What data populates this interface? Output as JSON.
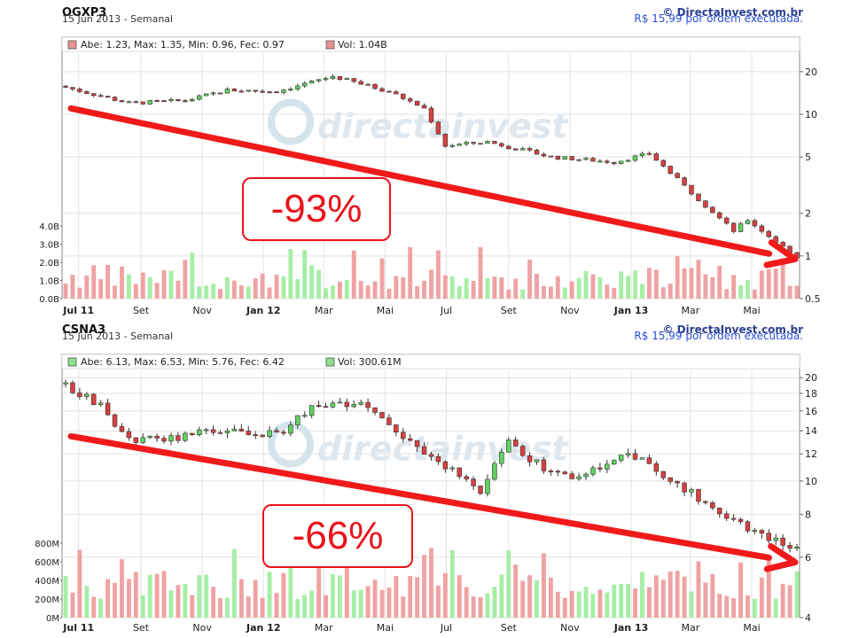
{
  "watermark": "directainvest",
  "charts": [
    {
      "symbol": "OGXP3",
      "date_line": "15 Jun 2013 - Semanal",
      "copyright": "© DirectaInvest.com.br",
      "price_note": "R$ 15,99 por ordem executada.",
      "legend_ohlc": "Abe: 1.23, Max: 1.35, Min: 0.96, Fec: 0.97",
      "legend_vol": "Vol: 1.04B",
      "legend_ohlc_color": "#e79595",
      "legend_vol_color": "#e79595",
      "price_scale": "log",
      "price_ticks": [
        "20",
        "10",
        "5",
        "2",
        "1",
        "0.5"
      ],
      "price_tick_values": [
        20,
        10,
        5,
        2,
        1,
        0.5
      ],
      "price_range": [
        0.5,
        27
      ],
      "volume_ticks": [
        "4.0B",
        "3.0B",
        "2.0B",
        "1.0B",
        "0.0B"
      ],
      "volume_tick_values": [
        4,
        3,
        2,
        1,
        0
      ],
      "x_labels": [
        "Jul 11",
        "Set",
        "Nov",
        "Jan 12",
        "Mar",
        "Mai",
        "Jul",
        "Set",
        "Nov",
        "Jan 13",
        "Mar",
        "Mai"
      ],
      "x_bold": [
        "Jul 11",
        "Jan 12",
        "Jan 13"
      ],
      "annotation": "-93%",
      "chart_data": {
        "type": "candlestick",
        "period": "weekly",
        "start": "2011-06-18",
        "end": "2013-06-15",
        "close_keypoints": [
          {
            "date": "2011-06-18",
            "value": 15.5
          },
          {
            "date": "2011-08-20",
            "value": 12.0
          },
          {
            "date": "2011-10-15",
            "value": 12.5
          },
          {
            "date": "2011-11-26",
            "value": 14.8
          },
          {
            "date": "2012-01-14",
            "value": 14.5
          },
          {
            "date": "2012-03-10",
            "value": 18.5
          },
          {
            "date": "2012-05-05",
            "value": 14.5
          },
          {
            "date": "2012-06-09",
            "value": 11.0
          },
          {
            "date": "2012-06-30",
            "value": 6.0
          },
          {
            "date": "2012-08-11",
            "value": 6.4
          },
          {
            "date": "2012-10-13",
            "value": 5.0
          },
          {
            "date": "2012-12-15",
            "value": 4.6
          },
          {
            "date": "2013-01-19",
            "value": 5.3
          },
          {
            "date": "2013-03-02",
            "value": 2.8
          },
          {
            "date": "2013-04-13",
            "value": 1.5
          },
          {
            "date": "2013-04-27",
            "value": 1.8
          },
          {
            "date": "2013-06-15",
            "value": 0.97
          }
        ],
        "volume_range_B": [
          0.5,
          3.0
        ],
        "trendline": {
          "from": {
            "date": "2011-06-18",
            "value": 11.0
          },
          "to": {
            "date": "2013-06-15",
            "value": 0.95
          }
        }
      }
    },
    {
      "symbol": "CSNA3",
      "date_line": "15 Jun 2013 - Semanal",
      "copyright": "© DirectaInvest.com.br",
      "price_note": "R$ 15,99 por ordem executada.",
      "legend_ohlc": "Abe: 6.13, Max: 6.53, Min: 5.76, Fec: 6.42",
      "legend_vol": "Vol: 300.61M",
      "legend_ohlc_color": "#8ee08e",
      "legend_vol_color": "#8ee08e",
      "price_scale": "log",
      "price_ticks": [
        "20",
        "18",
        "16",
        "14",
        "12",
        "10",
        "8",
        "6",
        "4"
      ],
      "price_tick_values": [
        20,
        18,
        16,
        14,
        12,
        10,
        8,
        6,
        4
      ],
      "price_range": [
        4,
        21
      ],
      "volume_ticks": [
        "800M",
        "600M",
        "400M",
        "200M",
        "0M"
      ],
      "volume_tick_values": [
        800,
        600,
        400,
        200,
        0
      ],
      "x_labels": [
        "Jul 11",
        "Set",
        "Nov",
        "Jan 12",
        "Mar",
        "Mai",
        "Jul",
        "Set",
        "Nov",
        "Jan 13",
        "Mar",
        "Mai"
      ],
      "x_bold": [
        "Jul 11",
        "Jan 12",
        "Jan 13"
      ],
      "annotation": "-66%",
      "chart_data": {
        "type": "candlestick",
        "period": "weekly",
        "start": "2011-06-18",
        "end": "2013-06-15",
        "close_keypoints": [
          {
            "date": "2011-06-18",
            "value": 18.8
          },
          {
            "date": "2011-07-23",
            "value": 16.5
          },
          {
            "date": "2011-08-20",
            "value": 13.0
          },
          {
            "date": "2011-10-15",
            "value": 13.5
          },
          {
            "date": "2011-12-03",
            "value": 14.3
          },
          {
            "date": "2012-01-14",
            "value": 13.5
          },
          {
            "date": "2012-02-18",
            "value": 16.5
          },
          {
            "date": "2012-04-07",
            "value": 16.8
          },
          {
            "date": "2012-05-12",
            "value": 14.0
          },
          {
            "date": "2012-06-23",
            "value": 11.5
          },
          {
            "date": "2012-08-04",
            "value": 9.2
          },
          {
            "date": "2012-09-01",
            "value": 13.2
          },
          {
            "date": "2012-10-06",
            "value": 10.8
          },
          {
            "date": "2012-11-10",
            "value": 10.2
          },
          {
            "date": "2012-12-29",
            "value": 12.0
          },
          {
            "date": "2013-02-02",
            "value": 10.5
          },
          {
            "date": "2013-03-16",
            "value": 8.6
          },
          {
            "date": "2013-04-27",
            "value": 7.3
          },
          {
            "date": "2013-06-15",
            "value": 6.42
          }
        ],
        "volume_range_M": [
          200,
          750
        ],
        "trendline": {
          "from": {
            "date": "2011-06-18",
            "value": 13.5
          },
          "to": {
            "date": "2013-06-15",
            "value": 5.8
          }
        }
      }
    }
  ]
}
